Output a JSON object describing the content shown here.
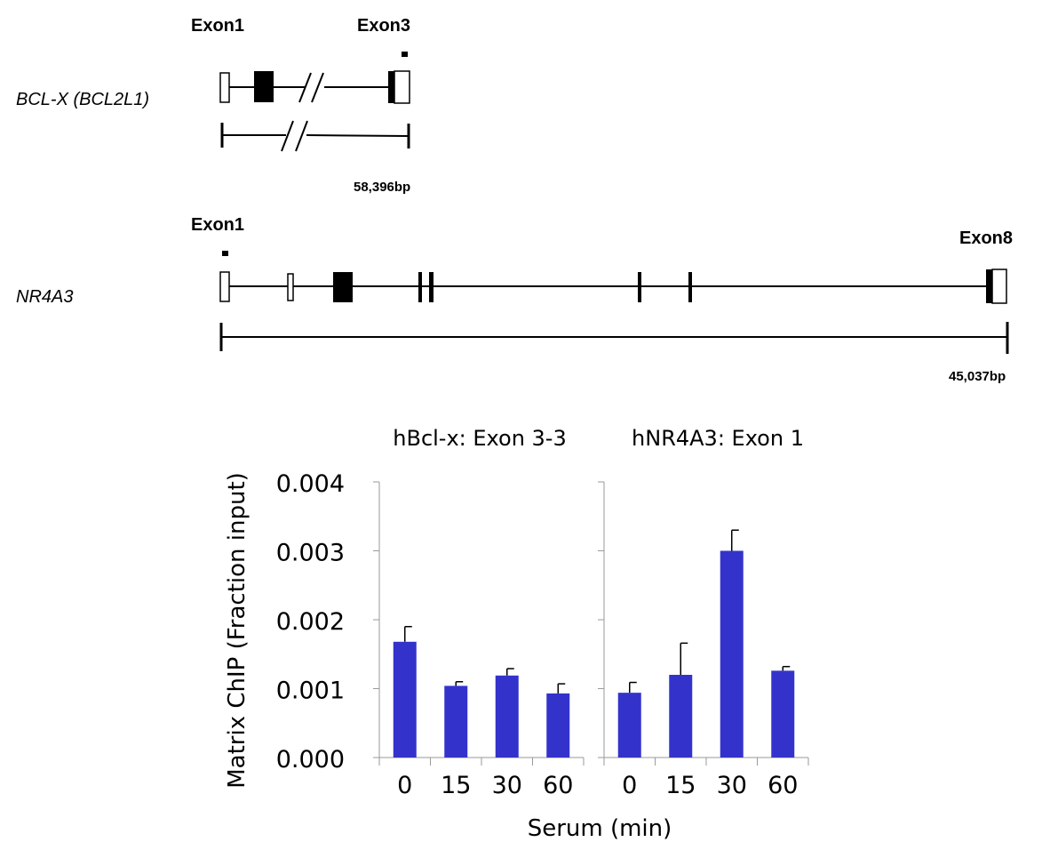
{
  "gene1": {
    "name": "BCL-X (BCL2L1)",
    "exon_left": "Exon1",
    "exon_right": "Exon3",
    "length": "58,396bp"
  },
  "gene2": {
    "name": "NR4A3",
    "exon_left": "Exon1",
    "exon_right": "Exon8",
    "length": "45,037bp"
  },
  "colors": {
    "bar": "#3333cc",
    "axis": "#9a9a9a",
    "ink": "#000000"
  },
  "chart_data": {
    "type": "bar",
    "ylabel": "Matrix ChIP (Fraction input)",
    "xlabel": "Serum (min)",
    "ylim": [
      0,
      0.004
    ],
    "yticks": [
      "0.000",
      "0.001",
      "0.002",
      "0.003",
      "0.004"
    ],
    "categories": [
      "0",
      "15",
      "30",
      "60"
    ],
    "panels": [
      {
        "title": "hBcl-x: Exon 3-3",
        "values": [
          0.00168,
          0.00104,
          0.00119,
          0.00093
        ],
        "errors": [
          0.00022,
          6e-05,
          0.0001,
          0.00014
        ]
      },
      {
        "title": "hNR4A3: Exon 1",
        "values": [
          0.00094,
          0.0012,
          0.003,
          0.00126
        ],
        "errors": [
          0.00015,
          0.00046,
          0.0003,
          6e-05
        ]
      }
    ]
  }
}
